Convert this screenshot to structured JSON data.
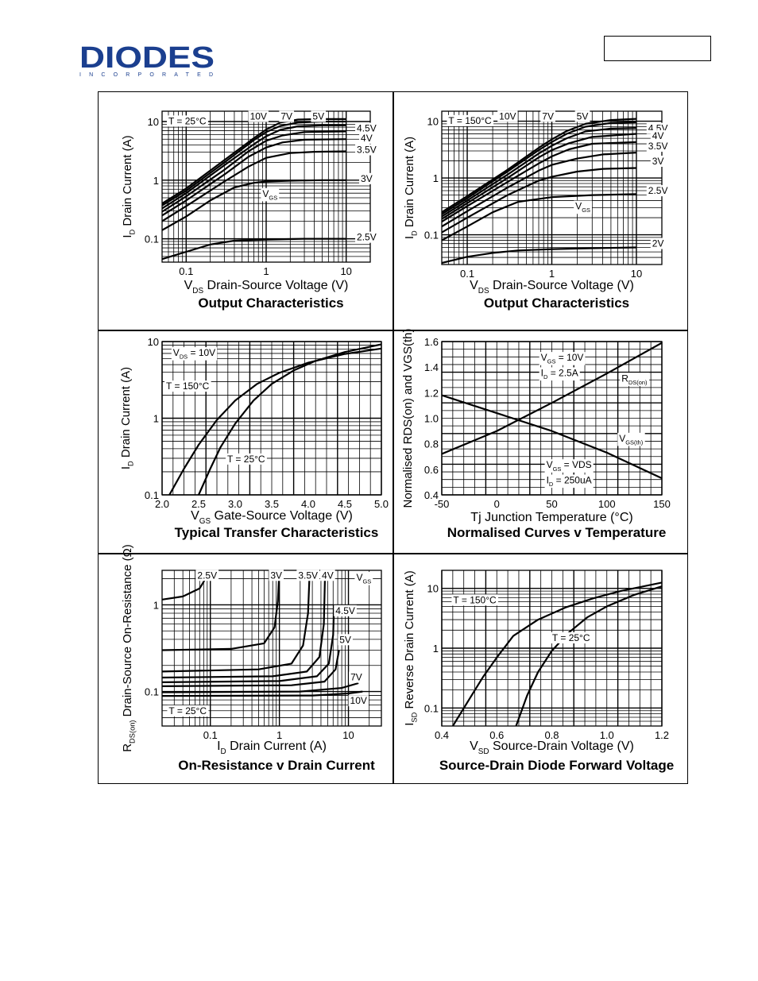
{
  "header": {
    "logo_text": "DIODES",
    "logo_subtext": "INCORPORATED"
  },
  "chart_data": [
    {
      "id": "output-25",
      "type": "line",
      "title": "Output Characteristics",
      "xlabel": "VDS  Drain-Source Voltage (V)",
      "ylabel": "ID  Drain Current (A)",
      "xscale": "log",
      "yscale": "log",
      "xlim": [
        0.05,
        20
      ],
      "ylim": [
        0.04,
        15
      ],
      "xticks": [
        {
          "v": 0.1,
          "t": "0.1"
        },
        {
          "v": 1,
          "t": "1"
        },
        {
          "v": 10,
          "t": "10"
        }
      ],
      "yticks": [
        {
          "v": 0.1,
          "t": "0.1"
        },
        {
          "v": 1,
          "t": "1"
        },
        {
          "v": 10,
          "t": "10"
        }
      ],
      "annotations": [
        "T = 25°C",
        "VGS"
      ],
      "series": [
        {
          "name": "10V",
          "x": [
            0.05,
            0.1,
            0.3,
            0.7,
            1.0,
            1.5,
            2.5,
            5,
            10
          ],
          "y": [
            0.4,
            0.72,
            2.2,
            5.2,
            7.3,
            9.6,
            10.8,
            11,
            11
          ]
        },
        {
          "name": "7V",
          "x": [
            0.05,
            0.1,
            0.3,
            0.7,
            1.0,
            1.5,
            2.5,
            5,
            10
          ],
          "y": [
            0.37,
            0.66,
            2.0,
            4.8,
            6.6,
            8.4,
            9.6,
            10,
            10
          ]
        },
        {
          "name": "5V",
          "x": [
            0.05,
            0.1,
            0.3,
            0.7,
            1.0,
            1.5,
            2.5,
            5,
            10
          ],
          "y": [
            0.33,
            0.6,
            1.8,
            4.1,
            5.6,
            7.2,
            8.3,
            8.6,
            8.6
          ]
        },
        {
          "name": "4.5V",
          "x": [
            0.05,
            0.1,
            0.3,
            0.6,
            1.0,
            1.6,
            3,
            10
          ],
          "y": [
            0.29,
            0.53,
            1.5,
            3.1,
            4.7,
            5.8,
            6.6,
            6.8
          ]
        },
        {
          "name": "4V",
          "x": [
            0.05,
            0.1,
            0.3,
            0.6,
            1.0,
            1.6,
            3,
            10
          ],
          "y": [
            0.25,
            0.45,
            1.25,
            2.5,
            3.6,
            4.4,
            4.9,
            5.0
          ]
        },
        {
          "name": "3.5V",
          "x": [
            0.05,
            0.1,
            0.3,
            0.6,
            1.0,
            2,
            4,
            10
          ],
          "y": [
            0.2,
            0.36,
            0.95,
            1.7,
            2.4,
            2.9,
            3.05,
            3.1
          ]
        },
        {
          "name": "3V",
          "x": [
            0.05,
            0.1,
            0.2,
            0.4,
            0.7,
            1.0,
            2,
            5,
            10
          ],
          "y": [
            0.14,
            0.24,
            0.45,
            0.75,
            0.9,
            0.95,
            0.98,
            1.0,
            1.0
          ]
        },
        {
          "name": "2.5V",
          "x": [
            0.05,
            0.1,
            0.2,
            0.4,
            1.0,
            3,
            10
          ],
          "y": [
            0.045,
            0.06,
            0.08,
            0.093,
            0.097,
            0.1,
            0.1
          ]
        }
      ]
    },
    {
      "id": "output-150",
      "type": "line",
      "title": "Output Characteristics",
      "xlabel": "VDS  Drain-Source Voltage (V)",
      "ylabel": "ID  Drain Current (A)",
      "xscale": "log",
      "yscale": "log",
      "xlim": [
        0.05,
        20
      ],
      "ylim": [
        0.03,
        15
      ],
      "xticks": [
        {
          "v": 0.1,
          "t": "0.1"
        },
        {
          "v": 1,
          "t": "1"
        },
        {
          "v": 10,
          "t": "10"
        }
      ],
      "yticks": [
        {
          "v": 0.1,
          "t": "0.1"
        },
        {
          "v": 1,
          "t": "1"
        },
        {
          "v": 10,
          "t": "10"
        }
      ],
      "annotations": [
        "T = 150°C",
        "VGS"
      ],
      "series": [
        {
          "name": "10V",
          "x": [
            0.05,
            0.1,
            0.3,
            0.7,
            1.0,
            1.5,
            2.5,
            5,
            10
          ],
          "y": [
            0.25,
            0.48,
            1.4,
            3.4,
            4.8,
            6.7,
            9.0,
            10.5,
            11
          ]
        },
        {
          "name": "7V",
          "x": [
            0.05,
            0.1,
            0.3,
            0.7,
            1.0,
            1.5,
            2.5,
            5,
            10
          ],
          "y": [
            0.23,
            0.44,
            1.3,
            3.1,
            4.3,
            6.0,
            8.0,
            9.3,
            9.6
          ]
        },
        {
          "name": "5V",
          "x": [
            0.05,
            0.1,
            0.3,
            0.7,
            1.0,
            1.5,
            2.5,
            5,
            10
          ],
          "y": [
            0.21,
            0.4,
            1.15,
            2.7,
            3.7,
            5.0,
            6.6,
            7.4,
            7.6
          ]
        },
        {
          "name": "4.5V",
          "x": [
            0.05,
            0.1,
            0.3,
            0.7,
            1.0,
            1.6,
            3,
            10
          ],
          "y": [
            0.19,
            0.36,
            1.0,
            2.3,
            3.1,
            4.1,
            5.3,
            6.0
          ]
        },
        {
          "name": "4V",
          "x": [
            0.05,
            0.1,
            0.3,
            0.7,
            1.0,
            1.6,
            3,
            10
          ],
          "y": [
            0.17,
            0.32,
            0.85,
            1.8,
            2.4,
            3.2,
            4.0,
            4.3
          ]
        },
        {
          "name": "3.5V",
          "x": [
            0.05,
            0.1,
            0.3,
            0.7,
            1.0,
            2,
            4,
            10
          ],
          "y": [
            0.14,
            0.26,
            0.68,
            1.35,
            1.7,
            2.2,
            2.6,
            2.8
          ]
        },
        {
          "name": "3V",
          "x": [
            0.05,
            0.1,
            0.3,
            0.7,
            1.0,
            2,
            4,
            10
          ],
          "y": [
            0.11,
            0.2,
            0.5,
            0.9,
            1.05,
            1.3,
            1.45,
            1.5
          ]
        },
        {
          "name": "2.5V",
          "x": [
            0.05,
            0.1,
            0.2,
            0.4,
            1.0,
            3,
            10
          ],
          "y": [
            0.08,
            0.14,
            0.25,
            0.38,
            0.46,
            0.5,
            0.52
          ]
        },
        {
          "name": "2V",
          "x": [
            0.05,
            0.1,
            0.2,
            0.4,
            1.0,
            3,
            10
          ],
          "y": [
            0.032,
            0.041,
            0.048,
            0.053,
            0.056,
            0.058,
            0.06
          ]
        }
      ]
    },
    {
      "id": "transfer",
      "type": "line",
      "title": "Typical Transfer Characteristics",
      "xlabel": "VGS  Gate-Source Voltage (V)",
      "ylabel": "ID  Drain Current (A)",
      "xscale": "linear",
      "yscale": "log",
      "xlim": [
        2.0,
        5.0
      ],
      "ylim": [
        0.1,
        10
      ],
      "xticks": [
        {
          "v": 2.0,
          "t": "2.0"
        },
        {
          "v": 2.5,
          "t": "2.5"
        },
        {
          "v": 3.0,
          "t": "3.0"
        },
        {
          "v": 3.5,
          "t": "3.5"
        },
        {
          "v": 4.0,
          "t": "4.0"
        },
        {
          "v": 4.5,
          "t": "4.5"
        },
        {
          "v": 5.0,
          "t": "5.0"
        }
      ],
      "yticks": [
        {
          "v": 0.1,
          "t": "0.1"
        },
        {
          "v": 1,
          "t": "1"
        },
        {
          "v": 10,
          "t": "10"
        }
      ],
      "annotations": [
        "VDS = 10V"
      ],
      "series": [
        {
          "name": "T = 150°C",
          "x": [
            2.1,
            2.3,
            2.5,
            2.75,
            3.0,
            3.3,
            3.6,
            4.0,
            4.5,
            5.0
          ],
          "y": [
            0.1,
            0.22,
            0.45,
            0.95,
            1.7,
            2.8,
            3.9,
            5.3,
            6.9,
            8.1
          ]
        },
        {
          "name": "T = 25°C",
          "x": [
            2.5,
            2.65,
            2.8,
            3.0,
            3.25,
            3.5,
            3.8,
            4.1,
            4.5,
            5.0
          ],
          "y": [
            0.1,
            0.21,
            0.42,
            0.85,
            1.7,
            2.8,
            4.2,
            5.6,
            7.3,
            9.2
          ]
        }
      ]
    },
    {
      "id": "normalised",
      "type": "line",
      "title": "Normalised Curves v Temperature",
      "xlabel": "Tj  Junction Temperature (°C)",
      "ylabel": "Normalised RDS(on) and VGS(th)",
      "xscale": "linear",
      "yscale": "linear",
      "xlim": [
        -50,
        150
      ],
      "ylim": [
        0.4,
        1.6
      ],
      "xticks": [
        {
          "v": -50,
          "t": "-50"
        },
        {
          "v": 0,
          "t": "0"
        },
        {
          "v": 50,
          "t": "50"
        },
        {
          "v": 100,
          "t": "100"
        },
        {
          "v": 150,
          "t": "150"
        }
      ],
      "yticks": [
        {
          "v": 0.4,
          "t": "0.4"
        },
        {
          "v": 0.6,
          "t": "0.6"
        },
        {
          "v": 0.8,
          "t": "0.8"
        },
        {
          "v": 1.0,
          "t": "1.0"
        },
        {
          "v": 1.2,
          "t": "1.2"
        },
        {
          "v": 1.4,
          "t": "1.4"
        },
        {
          "v": 1.6,
          "t": "1.6"
        }
      ],
      "annotations": [
        "VGS = 10V",
        "ID = 2.5A",
        "VGS = VDS",
        "ID = 250uA"
      ],
      "series": [
        {
          "name": "RDS(on)",
          "x": [
            -50,
            0,
            50,
            100,
            150
          ],
          "y": [
            0.72,
            0.9,
            1.12,
            1.35,
            1.59
          ]
        },
        {
          "name": "VGS(th)",
          "x": [
            -50,
            0,
            50,
            100,
            150
          ],
          "y": [
            1.18,
            1.04,
            0.9,
            0.73,
            0.53
          ]
        }
      ]
    },
    {
      "id": "onres",
      "type": "line",
      "title": "On-Resistance v Drain Current",
      "xlabel": "ID  Drain Current (A)",
      "ylabel": "RDS(on)  Drain-Source On-Resistance (Ω)",
      "xscale": "log",
      "yscale": "log",
      "xlim": [
        0.02,
        30
      ],
      "ylim": [
        0.04,
        2.5
      ],
      "xticks": [
        {
          "v": 0.1,
          "t": "0.1"
        },
        {
          "v": 1,
          "t": "1"
        },
        {
          "v": 10,
          "t": "10"
        }
      ],
      "yticks": [
        {
          "v": 0.1,
          "t": "0.1"
        },
        {
          "v": 1,
          "t": "1"
        }
      ],
      "annotations": [
        "T = 25°C",
        "VGS"
      ],
      "series": [
        {
          "name": "2.5V",
          "x": [
            0.02,
            0.04,
            0.07,
            0.085,
            0.095
          ],
          "y": [
            1.15,
            1.25,
            1.55,
            2.0,
            2.5
          ]
        },
        {
          "name": "3V",
          "x": [
            0.02,
            0.2,
            0.6,
            0.85,
            0.95,
            1.0
          ],
          "y": [
            0.3,
            0.31,
            0.36,
            0.55,
            1.1,
            2.5
          ]
        },
        {
          "name": "3.5V",
          "x": [
            0.02,
            0.5,
            1.5,
            2.2,
            2.6,
            2.75
          ],
          "y": [
            0.17,
            0.18,
            0.21,
            0.34,
            0.8,
            2.5
          ]
        },
        {
          "name": "4V",
          "x": [
            0.02,
            0.8,
            2.5,
            3.8,
            4.4,
            4.6
          ],
          "y": [
            0.145,
            0.15,
            0.17,
            0.25,
            0.6,
            2.5
          ]
        },
        {
          "name": "4.5V",
          "x": [
            0.02,
            1.0,
            3.5,
            5.2,
            6.0,
            6.2
          ],
          "y": [
            0.128,
            0.132,
            0.15,
            0.21,
            0.45,
            1.0
          ]
        },
        {
          "name": "5V",
          "x": [
            0.02,
            1.5,
            4.5,
            6.5,
            7.3
          ],
          "y": [
            0.115,
            0.118,
            0.13,
            0.18,
            0.3
          ]
        },
        {
          "name": "7V",
          "x": [
            0.02,
            2,
            8,
            14
          ],
          "y": [
            0.098,
            0.1,
            0.11,
            0.125
          ]
        },
        {
          "name": "10V",
          "x": [
            0.02,
            3,
            10,
            16
          ],
          "y": [
            0.089,
            0.09,
            0.095,
            0.1
          ]
        }
      ]
    },
    {
      "id": "diode",
      "type": "line",
      "title": "Source-Drain Diode Forward Voltage",
      "xlabel": "VSD  Source-Drain Voltage (V)",
      "ylabel": "ISD  Reverse Drain Current (A)",
      "xscale": "linear",
      "yscale": "log",
      "xlim": [
        0.4,
        1.2
      ],
      "ylim": [
        0.05,
        20
      ],
      "xticks": [
        {
          "v": 0.4,
          "t": "0.4"
        },
        {
          "v": 0.6,
          "t": "0.6"
        },
        {
          "v": 0.8,
          "t": "0.8"
        },
        {
          "v": 1.0,
          "t": "1.0"
        },
        {
          "v": 1.2,
          "t": "1.2"
        }
      ],
      "yticks": [
        {
          "v": 0.1,
          "t": "0.1"
        },
        {
          "v": 1,
          "t": "1"
        },
        {
          "v": 10,
          "t": "10"
        }
      ],
      "annotations": [],
      "series": [
        {
          "name": "T = 150°C",
          "x": [
            0.44,
            0.5,
            0.55,
            0.6,
            0.66,
            0.75,
            0.85,
            0.95,
            1.05,
            1.2
          ],
          "y": [
            0.05,
            0.14,
            0.33,
            0.7,
            1.6,
            3.0,
            4.8,
            6.8,
            9.0,
            12.5
          ]
        },
        {
          "name": "T = 25°C",
          "x": [
            0.67,
            0.71,
            0.75,
            0.8,
            0.86,
            0.93,
            1.0,
            1.1,
            1.2
          ],
          "y": [
            0.05,
            0.16,
            0.4,
            0.9,
            1.8,
            3.3,
            5.0,
            7.8,
            10.8
          ]
        }
      ]
    }
  ]
}
